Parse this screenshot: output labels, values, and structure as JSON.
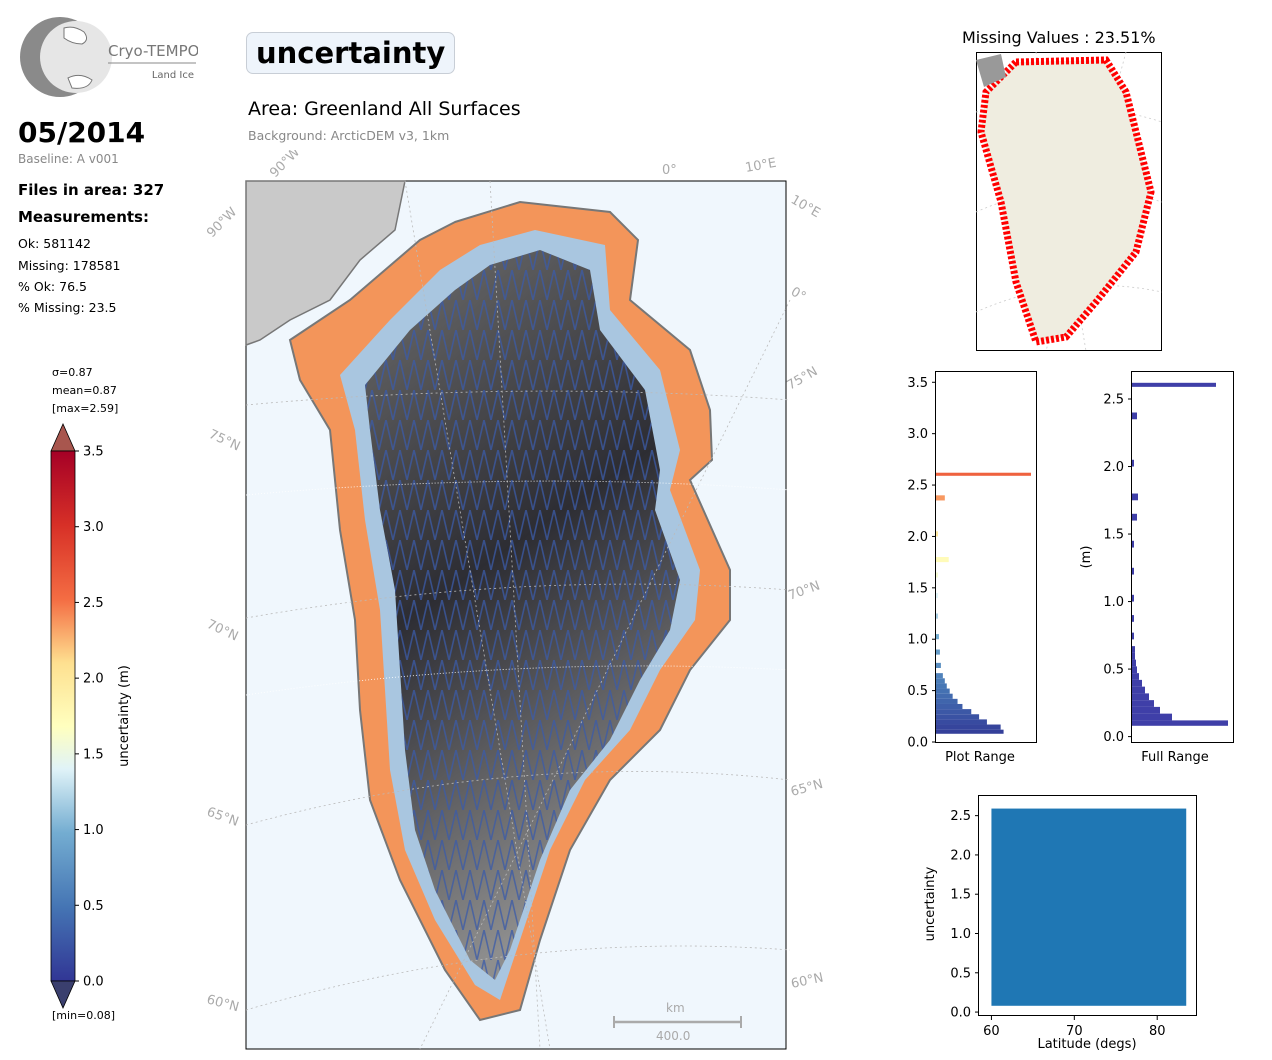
{
  "logo": {
    "name": "Cryo-TEMPO",
    "sub": "Land Ice"
  },
  "header": {
    "date": "05/2014",
    "baseline": "Baseline: A v001",
    "files": "Files in area: 327",
    "measurements_title": "Measurements:",
    "ok": "Ok: 581142",
    "missing": "Missing: 178581",
    "pct_ok": "% Ok: 76.5",
    "pct_missing": "% Missing: 23.5"
  },
  "title": "uncertainty",
  "area": "Area: Greenland All Surfaces",
  "background": "Background: ArcticDEM v3, 1km",
  "colorbar": {
    "sigma": "σ=0.87",
    "mean": "mean=0.87",
    "max": "[max=2.59]",
    "min": "[min=0.08]",
    "label": "uncertainty (m)",
    "ticks": [
      "0.0",
      "0.5",
      "1.0",
      "1.5",
      "2.0",
      "2.5",
      "3.0",
      "3.5"
    ]
  },
  "map": {
    "lat_labels_left": [
      "75°N",
      "70°N",
      "65°N",
      "60°N"
    ],
    "lat_labels_right": [
      "75°N",
      "70°N",
      "65°N",
      "60°N"
    ],
    "lon_labels": [
      "90°W",
      "0°",
      "10°E",
      "90°W",
      "10°E",
      "0°"
    ],
    "scale_unit": "km",
    "scale_value": "400.0"
  },
  "inset": {
    "title": "Missing Values : 23.51%"
  },
  "chart_data": [
    {
      "type": "bar",
      "orientation": "horizontal",
      "xlabel": "Plot Range",
      "ylabel": "",
      "ylim": [
        0,
        3.6
      ],
      "yticks": [
        "0.0",
        "0.5",
        "1.0",
        "1.5",
        "2.0",
        "2.5",
        "3.0",
        "3.5"
      ],
      "bins": [
        0.08,
        0.12,
        0.17,
        0.22,
        0.27,
        0.32,
        0.37,
        0.42,
        0.47,
        0.52,
        0.57,
        0.62,
        0.72,
        0.85,
        1.0,
        1.2,
        1.4,
        1.6,
        1.75,
        2.0,
        2.35,
        2.59
      ],
      "counts": [
        69,
        66,
        52,
        44,
        36,
        27,
        22,
        17,
        14,
        11,
        9,
        7,
        5,
        4,
        3,
        2,
        2,
        2,
        13,
        2,
        9,
        97
      ]
    },
    {
      "type": "bar",
      "orientation": "horizontal",
      "xlabel": "Full Range",
      "ylabel": "(m)",
      "ylim": [
        -0.04,
        2.7
      ],
      "yticks": [
        "0.0",
        "0.5",
        "1.0",
        "1.5",
        "2.0",
        "2.5"
      ],
      "bins": [
        0.08,
        0.12,
        0.17,
        0.22,
        0.27,
        0.32,
        0.37,
        0.42,
        0.47,
        0.52,
        0.57,
        0.62,
        0.72,
        0.85,
        1.0,
        1.2,
        1.4,
        1.6,
        1.75,
        2.0,
        2.35,
        2.59
      ],
      "counts": [
        96,
        40,
        28,
        22,
        17,
        13,
        10,
        7,
        5,
        4,
        3,
        3,
        2,
        2,
        2,
        2,
        2,
        5,
        6,
        2,
        5,
        84
      ]
    },
    {
      "type": "scatter",
      "xlabel": "Latitude (degs)",
      "ylabel": "uncertainty",
      "xlim": [
        58.5,
        84.8
      ],
      "ylim": [
        -0.05,
        2.75
      ],
      "xticks": [
        "60",
        "70",
        "80"
      ],
      "yticks": [
        "0.0",
        "0.5",
        "1.0",
        "1.5",
        "2.0",
        "2.5"
      ],
      "x_range": [
        60,
        83.5
      ],
      "y_range": [
        0.08,
        2.59
      ],
      "color": "#1f77b4"
    }
  ]
}
